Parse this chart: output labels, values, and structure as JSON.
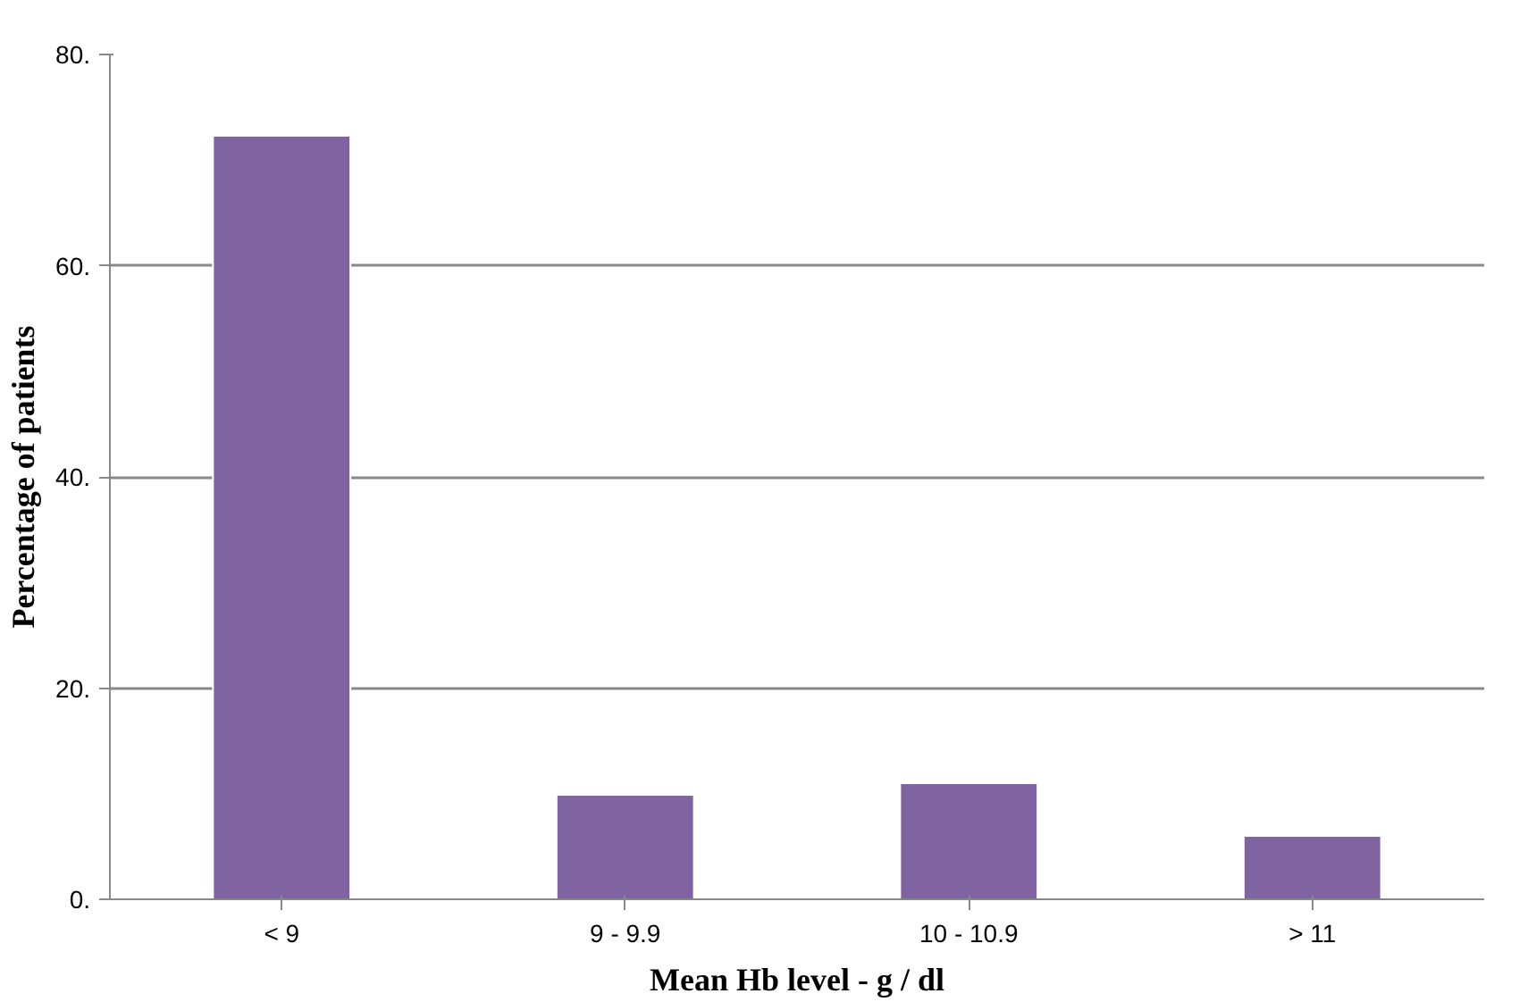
{
  "chart_data": {
    "type": "bar",
    "xlabel": "Mean Hb level - g / dl",
    "ylabel": "Percentage of patients",
    "categories": [
      "< 9",
      "9 - 9.9",
      "10 - 10.9",
      "> 11"
    ],
    "values": [
      72.3,
      9.9,
      11.0,
      6.0
    ],
    "color": "#8064a2",
    "ylim": [
      0,
      80
    ],
    "yticks": [
      {
        "value": 0,
        "label": "0."
      },
      {
        "value": 20,
        "label": "20."
      },
      {
        "value": 40,
        "label": "40."
      },
      {
        "value": 60,
        "label": "60."
      },
      {
        "value": 80,
        "label": "80."
      }
    ],
    "grid": "y"
  }
}
